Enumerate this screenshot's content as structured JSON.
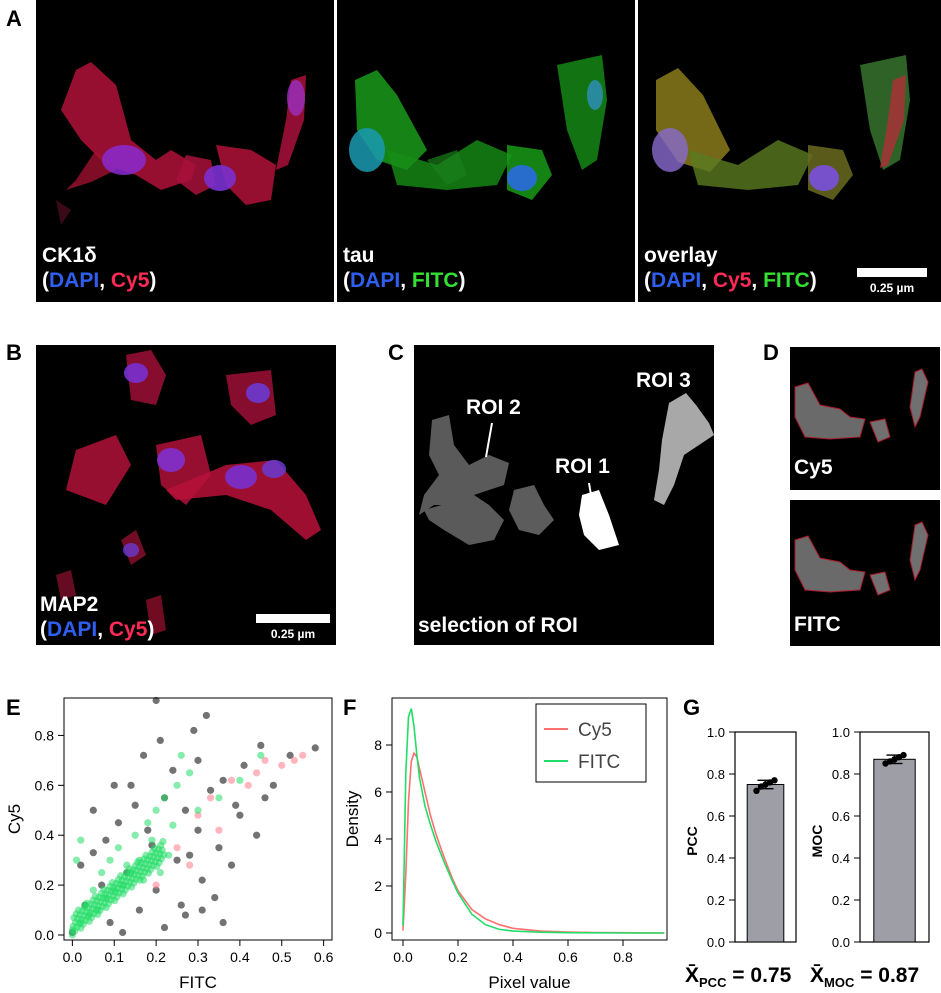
{
  "panels": {
    "A": {
      "label": "A",
      "images": [
        {
          "name": "CK1δ",
          "channels": [
            "DAPI",
            "Cy5"
          ],
          "channel_colors": [
            "#2f5ff0",
            "#ff2a55"
          ]
        },
        {
          "name": "tau",
          "channels": [
            "DAPI",
            "FITC"
          ],
          "channel_colors": [
            "#2f5ff0",
            "#33e033"
          ]
        },
        {
          "name": "overlay",
          "channels": [
            "DAPI",
            "Cy5",
            "FITC"
          ],
          "channel_colors": [
            "#2f5ff0",
            "#ff2a55",
            "#33e033"
          ]
        }
      ],
      "scale_bar": "0.25 µm"
    },
    "B": {
      "label": "B",
      "name": "MAP2",
      "channels": [
        "DAPI",
        "Cy5"
      ],
      "scale_bar": "0.25 µm"
    },
    "C": {
      "label": "C",
      "caption": "selection of ROI",
      "rois": [
        "ROI 2",
        "ROI 3",
        "ROI 1"
      ]
    },
    "D": {
      "label": "D",
      "captions": [
        "Cy5",
        "FITC"
      ]
    },
    "E": {
      "label": "E"
    },
    "F": {
      "label": "F"
    },
    "G": {
      "label": "G"
    }
  },
  "colors": {
    "dapi": "#2f5ff0",
    "cy5": "#ff2a55",
    "fitc": "#33e033",
    "bar": "#9e9ea6"
  },
  "chart_data": [
    {
      "panel": "E",
      "type": "scatter",
      "xlabel": "FITC",
      "ylabel": "Cy5",
      "xlim": [
        -0.02,
        0.62
      ],
      "ylim": [
        -0.02,
        0.95
      ],
      "xticks": [
        "0.0",
        "0.1",
        "0.2",
        "0.3",
        "0.4",
        "0.5",
        "0.6"
      ],
      "yticks": [
        "0.0",
        "0.2",
        "0.4",
        "0.6",
        "0.8"
      ],
      "series": [
        {
          "color": "#000000",
          "points": [
            [
              0.2,
              0.94
            ],
            [
              0.32,
              0.88
            ],
            [
              0.29,
              0.82
            ],
            [
              0.45,
              0.76
            ],
            [
              0.58,
              0.75
            ],
            [
              0.52,
              0.72
            ],
            [
              0.41,
              0.68
            ],
            [
              0.36,
              0.62
            ],
            [
              0.48,
              0.6
            ],
            [
              0.33,
              0.58
            ],
            [
              0.22,
              0.55
            ],
            [
              0.15,
              0.52
            ],
            [
              0.27,
              0.5
            ],
            [
              0.4,
              0.48
            ],
            [
              0.11,
              0.45
            ],
            [
              0.3,
              0.42
            ],
            [
              0.44,
              0.4
            ],
            [
              0.08,
              0.38
            ],
            [
              0.19,
              0.36
            ],
            [
              0.35,
              0.35
            ],
            [
              0.05,
              0.33
            ],
            [
              0.25,
              0.3
            ],
            [
              0.38,
              0.28
            ],
            [
              0.02,
              0.28
            ],
            [
              0.13,
              0.25
            ],
            [
              0.31,
              0.22
            ],
            [
              0.07,
              0.2
            ],
            [
              0.2,
              0.18
            ],
            [
              0.34,
              0.15
            ],
            [
              0.03,
              0.12
            ],
            [
              0.16,
              0.1
            ],
            [
              0.27,
              0.08
            ],
            [
              0.09,
              0.05
            ],
            [
              0.22,
              0.03
            ],
            [
              0.0,
              0.01
            ],
            [
              0.12,
              0.01
            ],
            [
              0.36,
              0.05
            ],
            [
              0.26,
              0.12
            ],
            [
              0.18,
              0.42
            ],
            [
              0.24,
              0.66
            ],
            [
              0.14,
              0.6
            ],
            [
              0.3,
              0.7
            ],
            [
              0.21,
              0.78
            ],
            [
              0.17,
              0.72
            ],
            [
              0.39,
              0.52
            ],
            [
              0.46,
              0.55
            ],
            [
              0.05,
              0.5
            ],
            [
              0.1,
              0.6
            ],
            [
              0.28,
              0.32
            ],
            [
              0.31,
              0.1
            ]
          ]
        },
        {
          "color": "#ff7a8a",
          "points": [
            [
              0.55,
              0.72
            ],
            [
              0.5,
              0.68
            ],
            [
              0.46,
              0.7
            ],
            [
              0.38,
              0.62
            ],
            [
              0.42,
              0.6
            ],
            [
              0.3,
              0.48
            ],
            [
              0.35,
              0.42
            ],
            [
              0.25,
              0.35
            ],
            [
              0.28,
              0.28
            ],
            [
              0.2,
              0.2
            ],
            [
              0.44,
              0.65
            ],
            [
              0.33,
              0.55
            ],
            [
              0.53,
              0.7
            ]
          ]
        },
        {
          "color": "#22dd66",
          "points": [
            [
              0.0,
              0.02
            ],
            [
              0.02,
              0.05
            ],
            [
              0.04,
              0.08
            ],
            [
              0.06,
              0.1
            ],
            [
              0.08,
              0.15
            ],
            [
              0.1,
              0.18
            ],
            [
              0.12,
              0.2
            ],
            [
              0.14,
              0.25
            ],
            [
              0.05,
              0.18
            ],
            [
              0.03,
              0.12
            ],
            [
              0.07,
              0.25
            ],
            [
              0.09,
              0.3
            ],
            [
              0.11,
              0.35
            ],
            [
              0.15,
              0.4
            ],
            [
              0.18,
              0.45
            ],
            [
              0.2,
              0.5
            ],
            [
              0.22,
              0.55
            ],
            [
              0.25,
              0.6
            ],
            [
              0.28,
              0.65
            ],
            [
              0.19,
              0.38
            ],
            [
              0.16,
              0.3
            ],
            [
              0.13,
              0.28
            ],
            [
              0.01,
              0.3
            ],
            [
              0.02,
              0.38
            ],
            [
              0.24,
              0.44
            ],
            [
              0.3,
              0.5
            ],
            [
              0.35,
              0.55
            ],
            [
              0.4,
              0.62
            ],
            [
              0.45,
              0.72
            ],
            [
              0.26,
              0.72
            ],
            [
              0.17,
              0.22
            ],
            [
              0.21,
              0.25
            ],
            [
              0.23,
              0.32
            ]
          ]
        }
      ]
    },
    {
      "panel": "F",
      "type": "line",
      "xlabel": "Pixel value",
      "ylabel": "Density",
      "xlim": [
        -0.04,
        0.96
      ],
      "ylim": [
        -0.3,
        10.0
      ],
      "xticks": [
        "0.0",
        "0.2",
        "0.4",
        "0.6",
        "0.8"
      ],
      "yticks": [
        "0",
        "2",
        "4",
        "6",
        "8"
      ],
      "legend": "top-right",
      "series": [
        {
          "name": "Cy5",
          "color": "#ff7070",
          "x": [
            0.0,
            0.01,
            0.02,
            0.03,
            0.04,
            0.05,
            0.06,
            0.08,
            0.1,
            0.12,
            0.15,
            0.18,
            0.2,
            0.25,
            0.3,
            0.35,
            0.4,
            0.5,
            0.6,
            0.7,
            0.8,
            0.95
          ],
          "y": [
            0.1,
            2.5,
            5.6,
            7.3,
            7.65,
            7.5,
            7.0,
            6.0,
            5.0,
            4.2,
            3.2,
            2.3,
            1.8,
            1.0,
            0.6,
            0.35,
            0.2,
            0.08,
            0.04,
            0.02,
            0.01,
            0.0
          ]
        },
        {
          "name": "FITC",
          "color": "#22dd66",
          "x": [
            0.0,
            0.005,
            0.01,
            0.02,
            0.03,
            0.04,
            0.05,
            0.06,
            0.08,
            0.1,
            0.12,
            0.15,
            0.18,
            0.2,
            0.25,
            0.3,
            0.35,
            0.4,
            0.5,
            0.6,
            0.8,
            0.95
          ],
          "y": [
            0.3,
            3.5,
            6.8,
            9.2,
            9.55,
            8.8,
            7.6,
            6.6,
            5.4,
            4.6,
            3.9,
            3.0,
            2.2,
            1.7,
            0.8,
            0.35,
            0.15,
            0.08,
            0.03,
            0.01,
            0.0,
            0.0
          ]
        }
      ]
    },
    {
      "panel": "G-PCC",
      "type": "bar",
      "ylabel": "PCC",
      "ylim": [
        0.0,
        1.0
      ],
      "yticks": [
        "0.0",
        "0.2",
        "0.4",
        "0.6",
        "0.8",
        "1.0"
      ],
      "values": [
        0.75
      ],
      "error": [
        0.02
      ],
      "points": [
        0.72,
        0.74,
        0.75,
        0.76,
        0.77
      ],
      "annotation_symbol": "X̄",
      "annotation_sub": "PCC",
      "annotation_value": " = 0.75"
    },
    {
      "panel": "G-MOC",
      "type": "bar",
      "ylabel": "MOC",
      "ylim": [
        0.0,
        1.0
      ],
      "yticks": [
        "0.0",
        "0.2",
        "0.4",
        "0.6",
        "0.8",
        "1.0"
      ],
      "values": [
        0.87
      ],
      "error": [
        0.02
      ],
      "points": [
        0.85,
        0.86,
        0.87,
        0.88,
        0.89
      ],
      "annotation_symbol": "X̄",
      "annotation_sub": "MOC",
      "annotation_value": " = 0.87"
    }
  ]
}
